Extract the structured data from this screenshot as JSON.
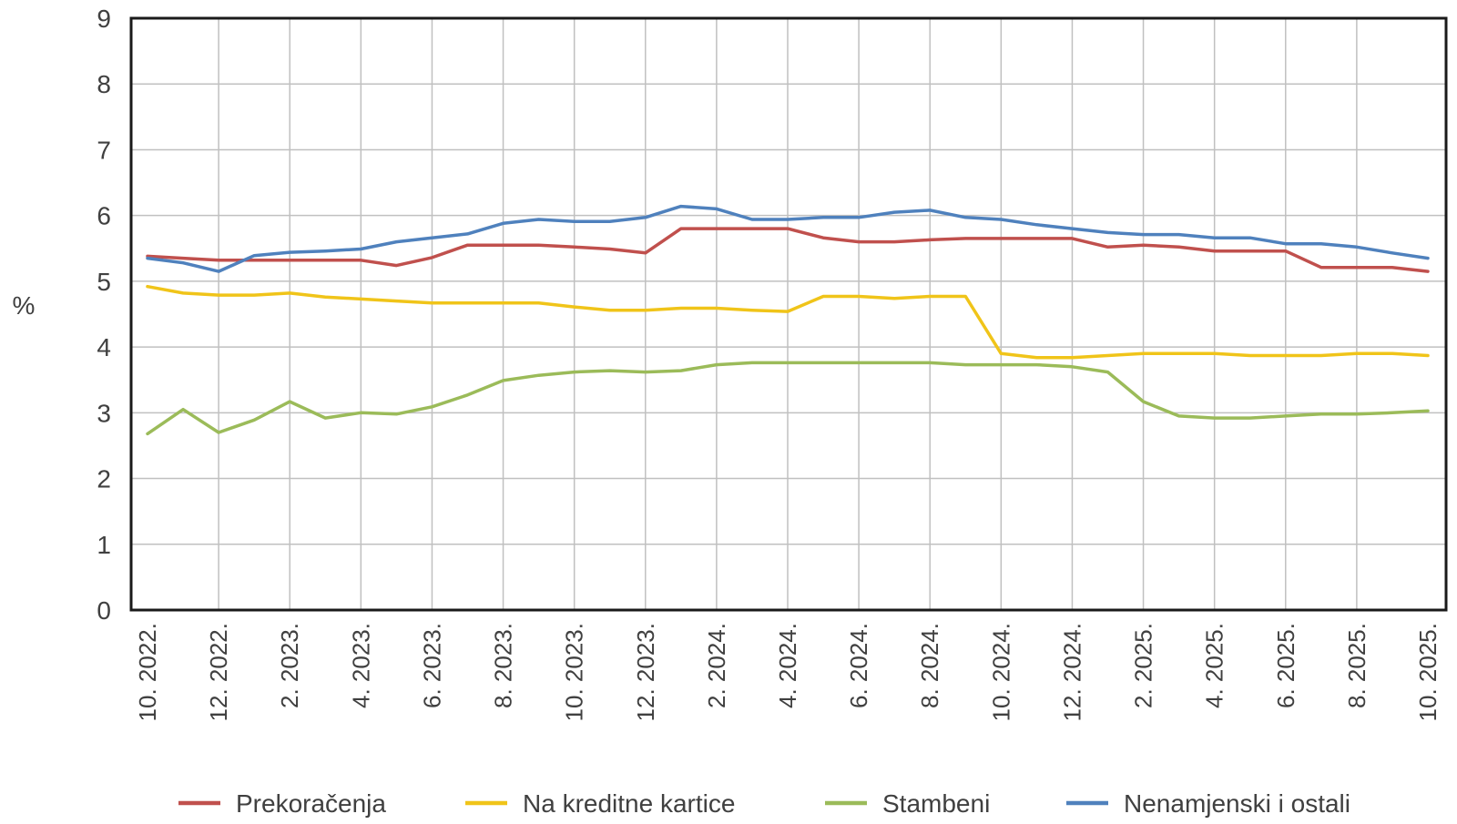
{
  "chart_data": {
    "type": "line",
    "title": "",
    "xlabel": "",
    "ylabel": "%",
    "ylim": [
      0,
      9
    ],
    "yticks": [
      "0",
      "1",
      "2",
      "3",
      "4",
      "5",
      "6",
      "7",
      "8",
      "9"
    ],
    "grid": true,
    "legend_position": "bottom",
    "categories": [
      "10. 2022.",
      "11. 2022.",
      "12. 2022.",
      "1. 2023.",
      "2. 2023.",
      "3. 2023.",
      "4. 2023.",
      "5. 2023.",
      "6. 2023.",
      "7. 2023.",
      "8. 2023.",
      "9. 2023.",
      "10. 2023.",
      "11. 2023.",
      "12. 2023.",
      "1. 2024.",
      "2. 2024.",
      "3. 2024.",
      "4. 2024.",
      "5. 2024.",
      "6. 2024.",
      "7. 2024.",
      "8. 2024.",
      "9. 2024.",
      "10. 2024.",
      "11. 2024.",
      "12. 2024.",
      "1. 2025.",
      "2. 2025.",
      "3. 2025.",
      "4. 2025.",
      "5. 2025.",
      "6. 2025.",
      "7. 2025.",
      "8. 2025.",
      "9. 2025.",
      "10. 2025."
    ],
    "tick_labels": [
      "10. 2022.",
      "12. 2022.",
      "2. 2023.",
      "4. 2023.",
      "6. 2023.",
      "8. 2023.",
      "10. 2023.",
      "12. 2023.",
      "2. 2024.",
      "4. 2024.",
      "6. 2024.",
      "8. 2024.",
      "10. 2024.",
      "12. 2024.",
      "2. 2025.",
      "4. 2025.",
      "6. 2025.",
      "8. 2025.",
      "10. 2025."
    ],
    "series": [
      {
        "name": "Prekoračenja",
        "color": "#c0504d",
        "values": [
          5.38,
          5.35,
          5.32,
          5.32,
          5.32,
          5.32,
          5.32,
          5.24,
          5.36,
          5.55,
          5.55,
          5.55,
          5.52,
          5.49,
          5.43,
          5.8,
          5.8,
          5.8,
          5.8,
          5.66,
          5.6,
          5.6,
          5.63,
          5.65,
          5.65,
          5.65,
          5.65,
          5.52,
          5.55,
          5.52,
          5.46,
          5.46,
          5.46,
          5.21,
          5.21,
          5.21,
          5.15
        ]
      },
      {
        "name": "Na kreditne kartice",
        "color": "#f0c419",
        "values": [
          4.92,
          4.82,
          4.79,
          4.79,
          4.82,
          4.76,
          4.73,
          4.7,
          4.67,
          4.67,
          4.67,
          4.67,
          4.61,
          4.56,
          4.56,
          4.59,
          4.59,
          4.56,
          4.54,
          4.77,
          4.77,
          4.74,
          4.77,
          4.77,
          3.9,
          3.84,
          3.84,
          3.87,
          3.9,
          3.9,
          3.9,
          3.87,
          3.87,
          3.87,
          3.9,
          3.9,
          3.87
        ]
      },
      {
        "name": "Stambeni",
        "color": "#9bbb59",
        "values": [
          2.68,
          3.05,
          2.7,
          2.89,
          3.17,
          2.92,
          3.0,
          2.98,
          3.09,
          3.27,
          3.49,
          3.57,
          3.62,
          3.64,
          3.62,
          3.64,
          3.73,
          3.76,
          3.76,
          3.76,
          3.76,
          3.76,
          3.76,
          3.73,
          3.73,
          3.73,
          3.7,
          3.62,
          3.17,
          2.95,
          2.92,
          2.92,
          2.95,
          2.98,
          2.98,
          3.0,
          3.03
        ]
      },
      {
        "name": "Nenamjenski i ostali",
        "color": "#4f81bd",
        "values": [
          5.35,
          5.28,
          5.15,
          5.39,
          5.44,
          5.46,
          5.49,
          5.6,
          5.66,
          5.72,
          5.88,
          5.94,
          5.91,
          5.91,
          5.97,
          6.14,
          6.1,
          5.94,
          5.94,
          5.97,
          5.97,
          6.05,
          6.08,
          5.97,
          5.94,
          5.86,
          5.8,
          5.74,
          5.71,
          5.71,
          5.66,
          5.66,
          5.57,
          5.57,
          5.52,
          5.43,
          5.35
        ]
      }
    ]
  }
}
